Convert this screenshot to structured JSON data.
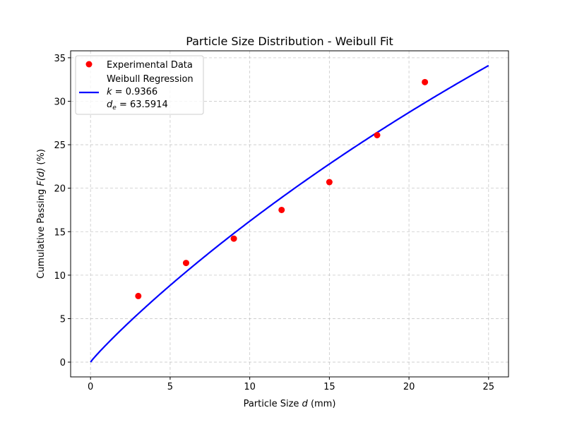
{
  "chart_data": {
    "type": "scatter",
    "title": "Particle Size Distribution - Weibull Fit",
    "xlabel_prefix": "Particle Size ",
    "xlabel_var": "d",
    "xlabel_suffix": " (mm)",
    "ylabel_prefix": "Cumulative Passing ",
    "ylabel_var": "F(d)",
    "ylabel_suffix": " (%)",
    "xlim": [
      -1.25,
      26.25
    ],
    "ylim": [
      -1.7,
      35.8
    ],
    "xticks": [
      0,
      5,
      10,
      15,
      20,
      25
    ],
    "yticks": [
      0,
      5,
      10,
      15,
      20,
      25,
      30,
      35
    ],
    "grid": true,
    "legend_position": "top-left",
    "series": [
      {
        "name": "Experimental Data",
        "kind": "scatter",
        "color": "#ff0000",
        "x": [
          3,
          6,
          9,
          12,
          15,
          18,
          21
        ],
        "y": [
          7.6,
          11.4,
          14.2,
          17.5,
          20.7,
          26.1,
          32.2
        ]
      },
      {
        "name": "Weibull Regression",
        "kind": "line",
        "color": "#0000ff",
        "model": "F(d) = 100*(1-exp(-(d/de)^k))",
        "k": 0.9366,
        "de": 63.5914,
        "x_range": [
          0,
          25
        ]
      }
    ],
    "legend": {
      "scatter_label": "Experimental Data",
      "line_label": "Weibull Regression",
      "k_var": "k",
      "k_text": " = 0.9366",
      "de_var": "d",
      "de_sub": "e",
      "de_text": " = 63.5914"
    }
  }
}
